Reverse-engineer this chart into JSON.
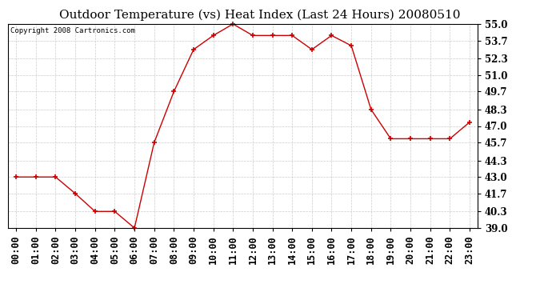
{
  "title": "Outdoor Temperature (vs) Heat Index (Last 24 Hours) 20080510",
  "copyright_text": "Copyright 2008 Cartronics.com",
  "x_labels": [
    "00:00",
    "01:00",
    "02:00",
    "03:00",
    "04:00",
    "05:00",
    "06:00",
    "07:00",
    "08:00",
    "09:00",
    "10:00",
    "11:00",
    "12:00",
    "13:00",
    "14:00",
    "15:00",
    "16:00",
    "17:00",
    "18:00",
    "19:00",
    "20:00",
    "21:00",
    "22:00",
    "23:00"
  ],
  "y_values": [
    43.0,
    43.0,
    43.0,
    41.7,
    40.3,
    40.3,
    39.0,
    45.7,
    49.7,
    53.0,
    54.1,
    55.0,
    54.1,
    54.1,
    54.1,
    53.0,
    54.1,
    53.3,
    48.3,
    46.0,
    46.0,
    46.0,
    46.0,
    47.3
  ],
  "y_ticks": [
    39.0,
    40.3,
    41.7,
    43.0,
    44.3,
    45.7,
    47.0,
    48.3,
    49.7,
    51.0,
    52.3,
    53.7,
    55.0
  ],
  "ylim": [
    39.0,
    55.0
  ],
  "line_color": "#cc0000",
  "marker": "+",
  "marker_color": "#cc0000",
  "grid_color": "#cccccc",
  "bg_color": "#ffffff",
  "title_fontsize": 11,
  "copyright_fontsize": 6.5,
  "tick_fontsize": 8.5
}
